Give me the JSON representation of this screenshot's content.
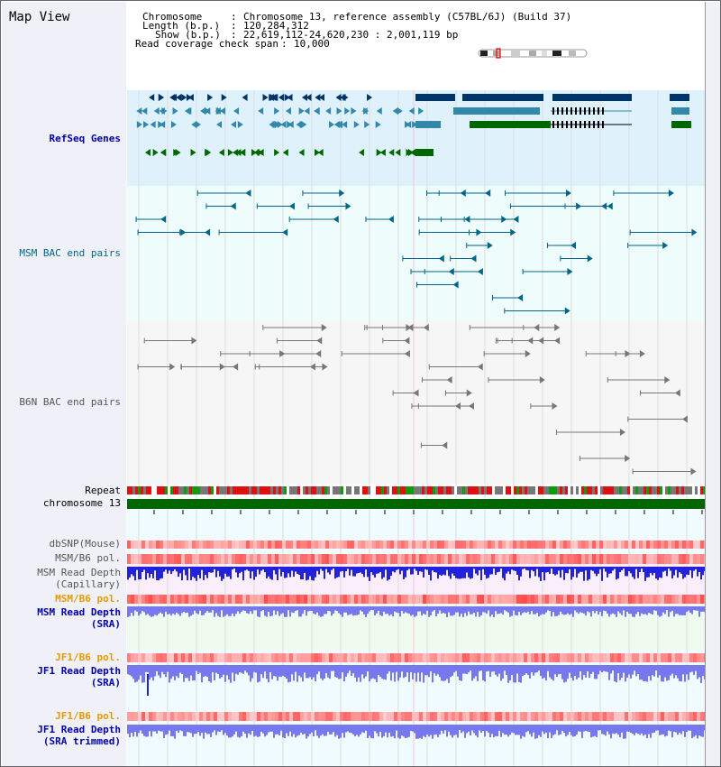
{
  "title": "Map View",
  "header": {
    "chromosome_label": "Chromosome",
    "chromosome_value": "Chromosome 13, reference assembly (C57BL/6J) (Build 37)",
    "length_label": "Length (b.p.)",
    "length_value": "120,284,312",
    "show_label": "Show (b.p.)",
    "show_value": "22,619,112-24,620,230 : 2,001,119 bp",
    "coverage_label": "Read coverage check span",
    "coverage_value": "10,000"
  },
  "tracks": {
    "refseq": "RefSeq Genes",
    "msm_bac": "MSM BAC end pairs",
    "b6n_bac": "B6N BAC end pairs",
    "repeat": "Repeat",
    "chromosome": "chromosome 13",
    "dbsnp": "dbSNP(Mouse)",
    "msm_b6_pol_1": "MSM/B6 pol.",
    "msm_depth_cap_1": "MSM Read Depth",
    "msm_depth_cap_2": "(Capillary)",
    "msm_b6_pol_2": "MSM/B6 pol.",
    "msm_depth_sra_1": "MSM Read Depth",
    "msm_depth_sra_2": "(SRA)",
    "jf1_b6_pol_1": "JF1/B6 pol.",
    "jf1_depth_sra_1": "JF1 Read Depth",
    "jf1_depth_sra_2": "(SRA)",
    "jf1_b6_pol_2": "JF1/B6 pol.",
    "jf1_depth_trim_1": "JF1 Read Depth",
    "jf1_depth_trim_2": "(SRA trimmed)"
  },
  "axis": {
    "ticks": [
      "22800000",
      "23200000",
      "23600000",
      "24000000",
      "24400000"
    ]
  },
  "colors": {
    "refseq_bg": "#dff2fb",
    "refseq_dark": "#003366",
    "refseq_mid": "#3388aa",
    "refseq_green": "#006600",
    "msm_bac": "#006688",
    "b6n_bac": "#777777",
    "chromosome_bar": "#006600",
    "depth_blue": "#2222dd",
    "depth_light": "#7777ee"
  }
}
